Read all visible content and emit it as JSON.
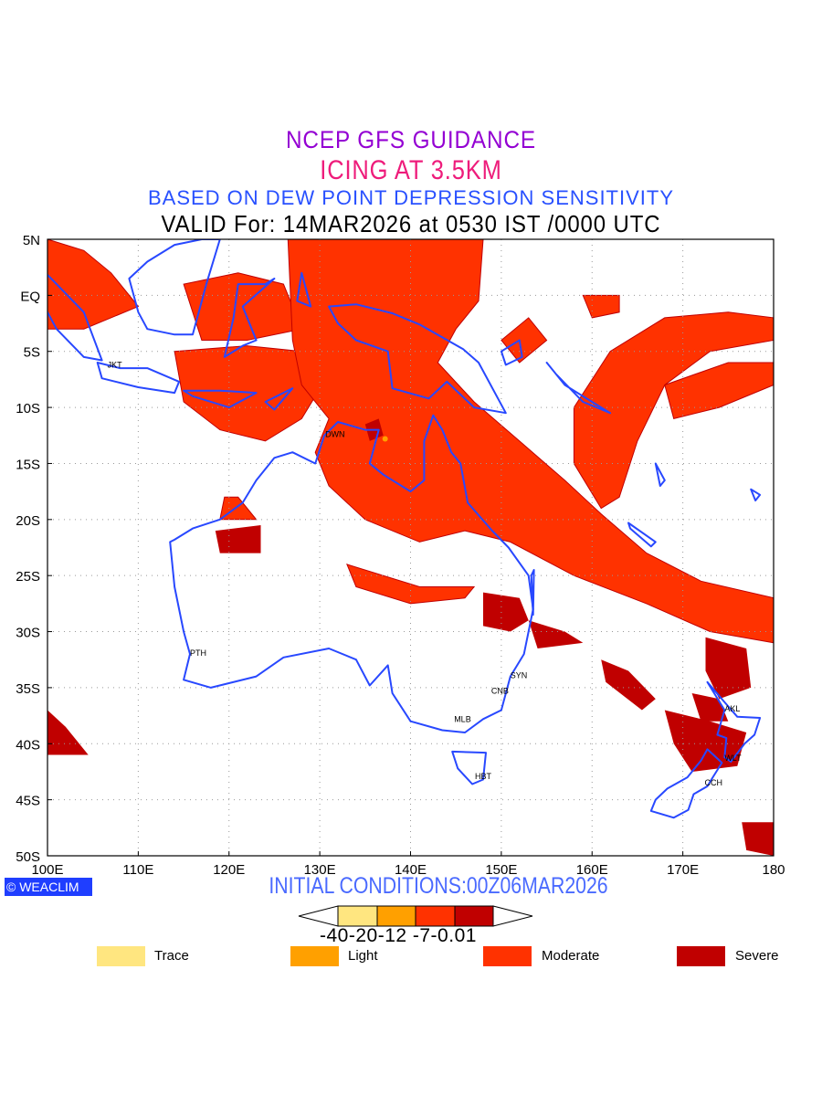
{
  "title": {
    "line1": "NCEP GFS GUIDANCE",
    "line2": "ICING AT 3.5KM",
    "line3": "BASED ON DEW POINT DEPRESSION SENSITIVITY",
    "line4": "VALID For: 14MAR2026 at 0530 IST /0000 UTC"
  },
  "map": {
    "lat_labels": [
      "5N",
      "EQ",
      "5S",
      "10S",
      "15S",
      "20S",
      "25S",
      "30S",
      "35S",
      "40S",
      "45S",
      "50S"
    ],
    "lon_labels": [
      "100E",
      "110E",
      "120E",
      "130E",
      "140E",
      "150E",
      "160E",
      "170E",
      "180"
    ],
    "stations": [
      "JKT",
      "DWN",
      "PTH",
      "SYN",
      "CNB",
      "MLB",
      "HBT",
      "AKL",
      "WLT",
      "CCH"
    ]
  },
  "logo": "WEACLIM",
  "initial_conditions": "INITIAL CONDITIONS:00Z06MAR2026",
  "colorbar": {
    "labels": "-40-20-12 -7-0.01",
    "colors": [
      "#ffe680",
      "#ffa000",
      "#ff3200",
      "#c00000"
    ]
  },
  "legend": [
    {
      "label": "Trace",
      "color": "#ffe680"
    },
    {
      "label": "Light",
      "color": "#ffa000"
    },
    {
      "label": "Moderate",
      "color": "#ff3200"
    },
    {
      "label": "Severe",
      "color": "#c00000"
    }
  ],
  "colors": {
    "coast": "#2848ff",
    "moderate": "#ff3200",
    "severe": "#c00000"
  }
}
